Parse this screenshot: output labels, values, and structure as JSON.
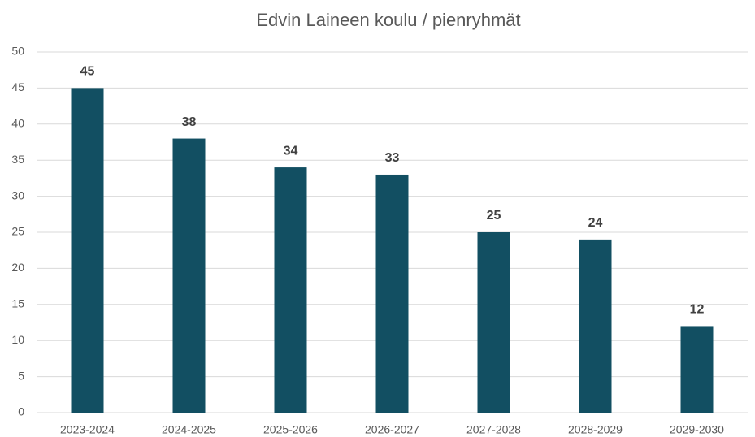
{
  "chart_data": {
    "type": "bar",
    "title": "Edvin Laineen koulu / pienryhmät",
    "categories": [
      "2023-2024",
      "2024-2025",
      "2025-2026",
      "2026-2027",
      "2027-2028",
      "2028-2029",
      "2029-2030"
    ],
    "values": [
      45,
      38,
      34,
      33,
      25,
      24,
      12
    ],
    "color": "#124f62",
    "ylim": [
      0,
      50
    ],
    "yticks": [
      0,
      5,
      10,
      15,
      20,
      25,
      30,
      35,
      40,
      45,
      50
    ],
    "grid": true,
    "data_labels": true
  }
}
